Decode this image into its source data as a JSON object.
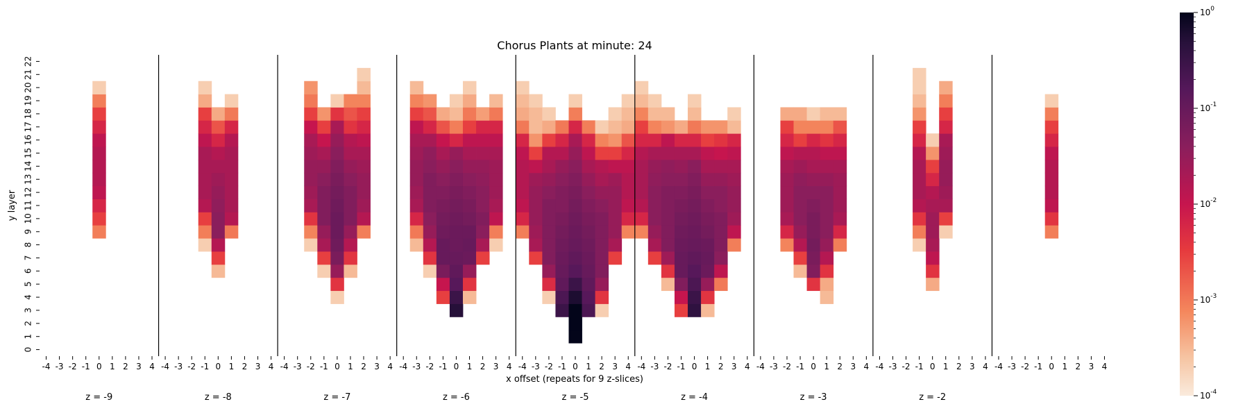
{
  "chart_data": {
    "type": "heatmap",
    "title": "Chorus Plants at minute: 24",
    "xlabel": "x offset (repeats for 9 z-slices)",
    "ylabel": "y layer",
    "x_ticks": [
      "-4",
      "-3",
      "-2",
      "-1",
      "0",
      "1",
      "2",
      "3",
      "4"
    ],
    "y_ticks": [
      "0",
      "1",
      "2",
      "3",
      "4",
      "5",
      "6",
      "7",
      "8",
      "9",
      "10",
      "11",
      "12",
      "13",
      "14",
      "15",
      "16",
      "17",
      "18",
      "19",
      "20",
      "21",
      "22"
    ],
    "z_slices": [
      "z = -9",
      "z = -8",
      "z = -7",
      "z = -6",
      "z = -5",
      "z = -4",
      "z = -3",
      "z = -2",
      ""
    ],
    "color_scale": {
      "type": "log",
      "vmin": 0.0001,
      "vmax": 1,
      "ticks": [
        "10^-4",
        "10^-3",
        "10^-2",
        "10^-1",
        "10^0"
      ],
      "colormap": "rocket_r",
      "low_color": "#faebdd",
      "high_color": "#03051a"
    },
    "slices": [
      {
        "z": "-9",
        "columns": [
          {
            "x": 0,
            "y0": 9,
            "v": [
              0.0009,
              0.003,
              0.006,
              0.012,
              0.015,
              0.015,
              0.015,
              0.012,
              0.006,
              0.003,
              0.0009,
              0.0002
            ]
          }
        ]
      },
      {
        "z": "-8",
        "columns": [
          {
            "x": -1,
            "y0": 8,
            "v": [
              0.0002,
              0.0009,
              0.003,
              0.015,
              0.02,
              0.02,
              0.02,
              0.02,
              0.012,
              0.006,
              0.003,
              0.0004,
              0.0002
            ]
          },
          {
            "x": 0,
            "y0": 6,
            "v": [
              0.0003,
              0.003,
              0.015,
              0.04,
              0.04,
              0.035,
              0.03,
              0.025,
              0.02,
              0.015,
              0.006,
              0.002,
              0.0004
            ]
          },
          {
            "x": 1,
            "y0": 9,
            "v": [
              0.001,
              0.015,
              0.02,
              0.02,
              0.02,
              0.02,
              0.02,
              0.015,
              0.006,
              0.001,
              0.0002
            ]
          }
        ]
      },
      {
        "z": "-7",
        "columns": [
          {
            "x": -2,
            "y0": 8,
            "v": [
              0.0002,
              0.0008,
              0.004,
              0.02,
              0.025,
              0.03,
              0.03,
              0.025,
              0.02,
              0.01,
              0.003,
              0.001,
              0.0006
            ]
          },
          {
            "x": -1,
            "y0": 6,
            "v": [
              0.0002,
              0.003,
              0.02,
              0.03,
              0.05,
              0.05,
              0.05,
              0.04,
              0.03,
              0.02,
              0.01,
              0.003,
              0.0006
            ]
          },
          {
            "x": 0,
            "y0": 4,
            "v": [
              0.0002,
              0.004,
              0.03,
              0.06,
              0.08,
              0.09,
              0.09,
              0.08,
              0.07,
              0.06,
              0.05,
              0.04,
              0.03,
              0.02,
              0.004,
              0.0002
            ]
          },
          {
            "x": 1,
            "y0": 6,
            "v": [
              0.0003,
              0.004,
              0.015,
              0.03,
              0.05,
              0.05,
              0.05,
              0.04,
              0.03,
              0.02,
              0.015,
              0.004,
              0.002,
              0.0008
            ]
          },
          {
            "x": 2,
            "y0": 9,
            "v": [
              0.0009,
              0.015,
              0.025,
              0.03,
              0.03,
              0.025,
              0.02,
              0.012,
              0.006,
              0.003,
              0.0008,
              0.0003,
              0.0002
            ]
          }
        ]
      },
      {
        "z": "-6",
        "columns": [
          {
            "x": -3,
            "y0": 8,
            "v": [
              0.0003,
              0.001,
              0.006,
              0.02,
              0.025,
              0.03,
              0.03,
              0.025,
              0.02,
              0.012,
              0.003,
              0.0008,
              0.0003
            ]
          },
          {
            "x": -2,
            "y0": 6,
            "v": [
              0.0002,
              0.004,
              0.015,
              0.03,
              0.04,
              0.05,
              0.05,
              0.05,
              0.04,
              0.035,
              0.02,
              0.006,
              0.002,
              0.0006
            ]
          },
          {
            "x": -1,
            "y0": 4,
            "v": [
              0.003,
              0.01,
              0.06,
              0.1,
              0.1,
              0.08,
              0.07,
              0.06,
              0.05,
              0.04,
              0.03,
              0.02,
              0.01,
              0.002,
              0.0004
            ]
          },
          {
            "x": 0,
            "y0": 3,
            "v": [
              0.5,
              0.3,
              0.15,
              0.12,
              0.1,
              0.09,
              0.09,
              0.08,
              0.07,
              0.06,
              0.05,
              0.04,
              0.03,
              0.006,
              0.0009,
              0.0003,
              0.0002
            ]
          },
          {
            "x": 1,
            "y0": 4,
            "v": [
              0.0003,
              0.004,
              0.03,
              0.09,
              0.1,
              0.09,
              0.07,
              0.06,
              0.05,
              0.04,
              0.03,
              0.02,
              0.012,
              0.003,
              0.001,
              0.0004,
              0.0002
            ]
          },
          {
            "x": 2,
            "y0": 7,
            "v": [
              0.003,
              0.02,
              0.04,
              0.05,
              0.04,
              0.04,
              0.035,
              0.03,
              0.02,
              0.012,
              0.006,
              0.0005
            ]
          },
          {
            "x": 3,
            "y0": 8,
            "v": [
              0.0002,
              0.0009,
              0.012,
              0.02,
              0.025,
              0.025,
              0.025,
              0.02,
              0.012,
              0.006,
              0.001,
              0.0003
            ]
          }
        ]
      },
      {
        "z": "-5",
        "columns": [
          {
            "x": -4,
            "y0": 9,
            "v": [
              0.0009,
              0.006,
              0.012,
              0.015,
              0.015,
              0.015,
              0.012,
              0.006,
              0.001,
              0.0004,
              0.0003,
              0.0002
            ]
          },
          {
            "x": -3,
            "y0": 7,
            "v": [
              0.003,
              0.02,
              0.025,
              0.03,
              0.03,
              0.03,
              0.025,
              0.012,
              0.003,
              0.0006,
              0.0003,
              0.0003,
              0.0002
            ]
          },
          {
            "x": -2,
            "y0": 4,
            "v": [
              0.0002,
              0.005,
              0.03,
              0.05,
              0.05,
              0.05,
              0.05,
              0.05,
              0.04,
              0.03,
              0.02,
              0.015,
              0.003,
              0.0004,
              0.0002
            ]
          },
          {
            "x": -1,
            "y0": 3,
            "v": [
              0.3,
              0.2,
              0.12,
              0.1,
              0.09,
              0.08,
              0.07,
              0.06,
              0.05,
              0.05,
              0.04,
              0.03,
              0.015,
              0.006,
              0.001
            ]
          },
          {
            "x": 0,
            "y0": 1,
            "v": [
              1,
              1,
              1,
              0.6,
              0.3,
              0.15,
              0.12,
              0.1,
              0.09,
              0.08,
              0.07,
              0.06,
              0.05,
              0.04,
              0.03,
              0.02,
              0.006,
              0.0009,
              0.0002
            ]
          },
          {
            "x": 1,
            "y0": 3,
            "v": [
              0.2,
              0.15,
              0.12,
              0.1,
              0.09,
              0.08,
              0.07,
              0.06,
              0.05,
              0.04,
              0.03,
              0.02,
              0.012,
              0.006,
              0.0009
            ]
          },
          {
            "x": 2,
            "y0": 3,
            "v": [
              0.0002,
              0.004,
              0.03,
              0.05,
              0.05,
              0.05,
              0.05,
              0.05,
              0.04,
              0.03,
              0.02,
              0.015,
              0.003,
              0.0008,
              0.0002
            ]
          },
          {
            "x": 3,
            "y0": 7,
            "v": [
              0.003,
              0.02,
              0.03,
              0.03,
              0.03,
              0.03,
              0.025,
              0.012,
              0.003,
              0.0006,
              0.0003,
              0.0002
            ]
          },
          {
            "x": 4,
            "y0": 9,
            "v": [
              0.0008,
              0.006,
              0.012,
              0.015,
              0.015,
              0.012,
              0.006,
              0.002,
              0.0004,
              0.0003,
              0.0002
            ]
          }
        ]
      },
      {
        "z": "-4",
        "columns": [
          {
            "x": -4,
            "y0": 9,
            "v": [
              0.0008,
              0.006,
              0.015,
              0.02,
              0.02,
              0.02,
              0.015,
              0.006,
              0.003,
              0.0008,
              0.0003,
              0.0002
            ]
          },
          {
            "x": -3,
            "y0": 7,
            "v": [
              0.003,
              0.02,
              0.03,
              0.04,
              0.04,
              0.04,
              0.035,
              0.03,
              0.02,
              0.006,
              0.0008,
              0.0003,
              0.0002
            ]
          },
          {
            "x": -2,
            "y0": 5,
            "v": [
              0.0003,
              0.004,
              0.025,
              0.05,
              0.05,
              0.05,
              0.05,
              0.05,
              0.04,
              0.035,
              0.02,
              0.012,
              0.0006,
              0.0003
            ]
          },
          {
            "x": -1,
            "y0": 3,
            "v": [
              0.003,
              0.01,
              0.05,
              0.1,
              0.1,
              0.09,
              0.08,
              0.07,
              0.06,
              0.05,
              0.04,
              0.03,
              0.02,
              0.006,
              0.0004
            ]
          },
          {
            "x": 0,
            "y0": 3,
            "v": [
              0.4,
              0.3,
              0.2,
              0.15,
              0.12,
              0.1,
              0.09,
              0.08,
              0.07,
              0.06,
              0.05,
              0.04,
              0.02,
              0.006,
              0.001,
              0.0003,
              0.0002
            ]
          },
          {
            "x": 1,
            "y0": 3,
            "v": [
              0.0003,
              0.004,
              0.03,
              0.09,
              0.1,
              0.09,
              0.07,
              0.06,
              0.05,
              0.04,
              0.03,
              0.02,
              0.012,
              0.003,
              0.0006
            ]
          },
          {
            "x": 2,
            "y0": 5,
            "v": [
              0.001,
              0.012,
              0.04,
              0.05,
              0.05,
              0.05,
              0.04,
              0.04,
              0.03,
              0.02,
              0.01,
              0.004,
              0.0006
            ]
          },
          {
            "x": 3,
            "y0": 8,
            "v": [
              0.0009,
              0.012,
              0.025,
              0.03,
              0.03,
              0.025,
              0.02,
              0.012,
              0.006,
              0.0003,
              0.0002
            ]
          }
        ]
      },
      {
        "z": "-3",
        "columns": [
          {
            "x": -2,
            "y0": 8,
            "v": [
              0.0008,
              0.006,
              0.02,
              0.025,
              0.025,
              0.025,
              0.02,
              0.012,
              0.006,
              0.003,
              0.0004
            ]
          },
          {
            "x": -1,
            "y0": 6,
            "v": [
              0.0003,
              0.003,
              0.015,
              0.03,
              0.04,
              0.04,
              0.04,
              0.035,
              0.025,
              0.015,
              0.003,
              0.0008,
              0.0004
            ]
          },
          {
            "x": 0,
            "y0": 5,
            "v": [
              0.004,
              0.05,
              0.06,
              0.07,
              0.06,
              0.06,
              0.05,
              0.04,
              0.03,
              0.02,
              0.015,
              0.006,
              0.0008,
              0.0002
            ]
          },
          {
            "x": 1,
            "y0": 4,
            "v": [
              0.0003,
              0.0004,
              0.004,
              0.015,
              0.03,
              0.04,
              0.04,
              0.04,
              0.04,
              0.03,
              0.02,
              0.012,
              0.004,
              0.0008,
              0.0003
            ]
          },
          {
            "x": 2,
            "y0": 8,
            "v": [
              0.0009,
              0.006,
              0.02,
              0.025,
              0.025,
              0.025,
              0.02,
              0.012,
              0.006,
              0.002,
              0.0003
            ]
          }
        ]
      },
      {
        "z": "-2",
        "columns": [
          {
            "x": -1,
            "y0": 8,
            "v": [
              0.0002,
              0.0009,
              0.004,
              0.015,
              0.02,
              0.02,
              0.02,
              0.015,
              0.006,
              0.003,
              0.0006,
              0.0003,
              0.0002,
              0.0002
            ]
          },
          {
            "x": 0,
            "y0": 5,
            "v": [
              0.0004,
              0.004,
              0.012,
              0.02,
              0.025,
              0.025,
              0.02,
              0.015,
              0.006,
              0.003,
              0.0006,
              0.0002
            ]
          },
          {
            "x": 1,
            "y0": 9,
            "v": [
              0.0002,
              0.003,
              0.02,
              0.025,
              0.03,
              0.03,
              0.025,
              0.02,
              0.006,
              0.003,
              0.0009,
              0.0004
            ]
          }
        ]
      },
      {
        "z": "",
        "columns": [
          {
            "x": 0,
            "y0": 9,
            "v": [
              0.0009,
              0.004,
              0.012,
              0.015,
              0.015,
              0.015,
              0.012,
              0.006,
              0.003,
              0.0009,
              0.0002
            ]
          }
        ]
      }
    ]
  }
}
